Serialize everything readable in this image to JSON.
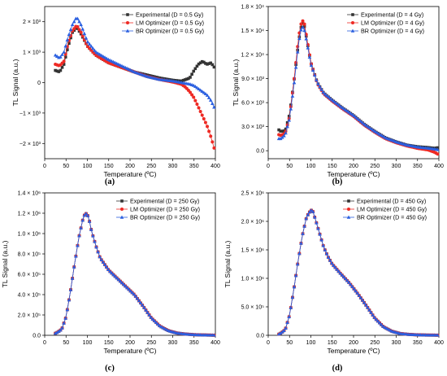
{
  "colors": {
    "experimental": "#333333",
    "lm": "#ee2a24",
    "br": "#2a5fe0"
  },
  "chart_data": [
    {
      "type": "scatter",
      "panel_label": "(a)",
      "xlabel": "Temperature (ºC)",
      "ylabel": "TL Signal (a.u.)",
      "xlim": [
        0,
        400
      ],
      "ylim": [
        -2500,
        2500
      ],
      "xticks": [
        0,
        50,
        100,
        150,
        200,
        250,
        300,
        350,
        400
      ],
      "xtick_labels": [
        "0",
        "50",
        "100",
        "150",
        "200",
        "250",
        "300",
        "350",
        "400"
      ],
      "yticks": [
        -2000,
        -1000,
        0,
        1000,
        2000
      ],
      "ytick_labels": [
        "−2 × 10³",
        "−1 × 10³",
        "0",
        "1 × 10³",
        "2 × 10³"
      ],
      "legend_position": "top-right",
      "series": [
        {
          "name": "Experimental (D = 0.5 Gy)",
          "marker": "square",
          "color": "#333333",
          "x": [
            25,
            35,
            45,
            55,
            65,
            75,
            85,
            100,
            120,
            150,
            180,
            210,
            240,
            270,
            300,
            320,
            340,
            350,
            360,
            370,
            380,
            390,
            400
          ],
          "y": [
            400,
            350,
            600,
            1200,
            1650,
            1820,
            1600,
            1200,
            900,
            650,
            500,
            350,
            250,
            150,
            80,
            50,
            150,
            400,
            600,
            700,
            600,
            650,
            450
          ]
        },
        {
          "name": "LM Optimizer (D = 0.5 Gy)",
          "marker": "circle",
          "color": "#ee2a24",
          "x": [
            25,
            35,
            45,
            55,
            65,
            75,
            85,
            100,
            120,
            150,
            180,
            210,
            240,
            270,
            300,
            320,
            330,
            340,
            350,
            360,
            370,
            380,
            390,
            400
          ],
          "y": [
            600,
            550,
            700,
            1300,
            1700,
            1880,
            1650,
            1200,
            900,
            650,
            500,
            350,
            200,
            100,
            20,
            -50,
            -150,
            -300,
            -500,
            -800,
            -1100,
            -1400,
            -1800,
            -2300
          ]
        },
        {
          "name": "BR Optimizer (D = 0.5 Gy)",
          "marker": "triangle",
          "color": "#2a5fe0",
          "x": [
            25,
            35,
            45,
            55,
            65,
            75,
            85,
            100,
            120,
            150,
            180,
            210,
            240,
            270,
            300,
            320,
            340,
            350,
            360,
            370,
            380,
            390,
            400
          ],
          "y": [
            900,
            800,
            1000,
            1500,
            1900,
            2150,
            1900,
            1350,
            1000,
            750,
            550,
            350,
            200,
            100,
            50,
            0,
            -50,
            -100,
            -200,
            -300,
            -400,
            -600,
            -900
          ]
        }
      ]
    },
    {
      "type": "scatter",
      "panel_label": "(b)",
      "xlabel": "Temperature (ºC)",
      "ylabel": "TL Signal (a.u.)",
      "xlim": [
        0,
        400
      ],
      "ylim": [
        -1000,
        18000
      ],
      "xticks": [
        0,
        50,
        100,
        150,
        200,
        250,
        300,
        350,
        400
      ],
      "xtick_labels": [
        "0",
        "50",
        "100",
        "150",
        "200",
        "250",
        "300",
        "350",
        "400"
      ],
      "yticks": [
        0,
        3000,
        6000,
        9000,
        12000,
        15000,
        18000
      ],
      "ytick_labels": [
        "0.0",
        "3.0 × 10³",
        "6.0 × 10³",
        "9.0 × 10³",
        "1.2 × 10⁴",
        "1.5 × 10⁴",
        "1.8 × 10⁴"
      ],
      "legend_position": "top-right",
      "series": [
        {
          "name": "Experimental (D = 4 Gy)",
          "marker": "square",
          "color": "#333333",
          "x": [
            25,
            30,
            40,
            50,
            60,
            70,
            75,
            80,
            85,
            90,
            100,
            115,
            130,
            150,
            175,
            200,
            225,
            250,
            275,
            300,
            325,
            350,
            375,
            390,
            400
          ],
          "y": [
            2600,
            2400,
            2500,
            4500,
            8500,
            13000,
            15000,
            16000,
            15500,
            14000,
            11000,
            8500,
            7200,
            6300,
            5300,
            4400,
            3300,
            2400,
            1600,
            1100,
            700,
            500,
            400,
            300,
            400
          ]
        },
        {
          "name": "LM Optimizer (D = 4 Gy)",
          "marker": "circle",
          "color": "#ee2a24",
          "x": [
            25,
            30,
            40,
            50,
            60,
            70,
            75,
            80,
            85,
            90,
            100,
            115,
            130,
            150,
            175,
            200,
            225,
            250,
            275,
            300,
            325,
            350,
            375,
            390,
            400
          ],
          "y": [
            2000,
            1900,
            2200,
            4200,
            8500,
            13500,
            15500,
            16300,
            15800,
            14200,
            11000,
            8400,
            7100,
            6200,
            5200,
            4300,
            3200,
            2300,
            1500,
            1000,
            600,
            300,
            100,
            -200,
            -500
          ]
        },
        {
          "name": "BR Optimizer (D = 4 Gy)",
          "marker": "triangle",
          "color": "#2a5fe0",
          "x": [
            25,
            30,
            40,
            50,
            60,
            70,
            75,
            80,
            85,
            90,
            100,
            115,
            130,
            150,
            175,
            200,
            225,
            250,
            275,
            300,
            325,
            350,
            375,
            390,
            400
          ],
          "y": [
            1500,
            1500,
            2000,
            4000,
            8000,
            12800,
            14800,
            15500,
            15000,
            13700,
            10800,
            8500,
            7200,
            6300,
            5300,
            4400,
            3300,
            2400,
            1600,
            1100,
            700,
            450,
            300,
            200,
            100
          ]
        }
      ]
    },
    {
      "type": "scatter",
      "panel_label": "(c)",
      "xlabel": "Temperature (ºC)",
      "ylabel": "TL Signal (a.u.)",
      "xlim": [
        0,
        400
      ],
      "ylim": [
        0,
        1400000
      ],
      "xticks": [
        0,
        50,
        100,
        150,
        200,
        250,
        300,
        350,
        400
      ],
      "xtick_labels": [
        "0",
        "50",
        "100",
        "150",
        "200",
        "250",
        "300",
        "350",
        "400"
      ],
      "yticks": [
        0,
        200000,
        400000,
        600000,
        800000,
        1000000,
        1200000,
        1400000
      ],
      "ytick_labels": [
        "0.0",
        "2.0 × 10⁵",
        "4.0 × 10⁵",
        "6.0 × 10⁵",
        "8.0 × 10⁵",
        "1.0 × 10⁶",
        "1.2 × 10⁶",
        "1.4 × 10⁶"
      ],
      "legend_position": "top-right",
      "series": [
        {
          "name": "Experimental (D = 250 Gy)",
          "marker": "square",
          "color": "#333333",
          "x": [
            25,
            30,
            40,
            50,
            60,
            70,
            80,
            90,
            95,
            100,
            105,
            110,
            120,
            130,
            140,
            150,
            170,
            190,
            210,
            230,
            250,
            270,
            290,
            310,
            330,
            350,
            370,
            400
          ],
          "y": [
            20000,
            30000,
            60000,
            180000,
            420000,
            700000,
            960000,
            1150000,
            1200000,
            1190000,
            1120000,
            1020000,
            880000,
            760000,
            700000,
            640000,
            560000,
            480000,
            400000,
            290000,
            170000,
            90000,
            45000,
            22000,
            12000,
            6000,
            3000,
            1000
          ]
        },
        {
          "name": "LM Optimizer (D = 250 Gy)",
          "marker": "circle",
          "color": "#ee2a24",
          "x": [
            25,
            30,
            40,
            50,
            60,
            70,
            80,
            90,
            95,
            100,
            105,
            110,
            120,
            130,
            140,
            150,
            170,
            190,
            210,
            230,
            250,
            270,
            290,
            310,
            330,
            350,
            370,
            400
          ],
          "y": [
            20000,
            30000,
            60000,
            180000,
            420000,
            700000,
            960000,
            1150000,
            1200000,
            1190000,
            1120000,
            1020000,
            880000,
            760000,
            700000,
            640000,
            560000,
            480000,
            400000,
            290000,
            170000,
            90000,
            45000,
            22000,
            12000,
            6000,
            3000,
            1000
          ]
        },
        {
          "name": "BR Optimizer (D = 250 Gy)",
          "marker": "triangle",
          "color": "#2a5fe0",
          "x": [
            25,
            30,
            40,
            50,
            60,
            70,
            80,
            90,
            95,
            100,
            105,
            110,
            120,
            130,
            140,
            150,
            170,
            190,
            210,
            230,
            250,
            270,
            290,
            310,
            330,
            350,
            370,
            400
          ],
          "y": [
            20000,
            30000,
            60000,
            180000,
            420000,
            700000,
            960000,
            1150000,
            1200000,
            1190000,
            1120000,
            1020000,
            880000,
            760000,
            700000,
            640000,
            560000,
            480000,
            400000,
            290000,
            170000,
            90000,
            45000,
            22000,
            12000,
            6000,
            3000,
            1000
          ]
        }
      ]
    },
    {
      "type": "scatter",
      "panel_label": "(d)",
      "xlabel": "Temperature (ºC)",
      "ylabel": "TL Signal (a.u.)",
      "xlim": [
        0,
        400
      ],
      "ylim": [
        0,
        2500000
      ],
      "xticks": [
        0,
        50,
        100,
        150,
        200,
        250,
        300,
        350,
        400
      ],
      "xtick_labels": [
        "0",
        "50",
        "100",
        "150",
        "200",
        "250",
        "300",
        "350",
        "400"
      ],
      "yticks": [
        0,
        500000,
        1000000,
        1500000,
        2000000,
        2500000
      ],
      "ytick_labels": [
        "0.0",
        "5.0 × 10⁵",
        "1.0 × 10⁶",
        "1.5 × 10⁶",
        "2.0 × 10⁶",
        "2.5 × 10⁶"
      ],
      "legend_position": "top-right",
      "series": [
        {
          "name": "Experimental (D = 450 Gy)",
          "marker": "square",
          "color": "#333333",
          "x": [
            25,
            30,
            40,
            50,
            60,
            70,
            80,
            90,
            100,
            105,
            110,
            120,
            130,
            140,
            150,
            170,
            190,
            210,
            230,
            250,
            270,
            290,
            310,
            330,
            350,
            370,
            400
          ],
          "y": [
            20000,
            40000,
            100000,
            350000,
            800000,
            1300000,
            1750000,
            2080000,
            2200000,
            2170000,
            2050000,
            1800000,
            1550000,
            1380000,
            1250000,
            1080000,
            920000,
            730000,
            520000,
            300000,
            150000,
            70000,
            30000,
            15000,
            8000,
            4000,
            2000
          ]
        },
        {
          "name": "LM Optimizer (D = 450 Gy)",
          "marker": "circle",
          "color": "#ee2a24",
          "x": [
            25,
            30,
            40,
            50,
            60,
            70,
            80,
            90,
            100,
            105,
            110,
            120,
            130,
            140,
            150,
            170,
            190,
            210,
            230,
            250,
            270,
            290,
            310,
            330,
            350,
            370,
            400
          ],
          "y": [
            20000,
            40000,
            100000,
            350000,
            800000,
            1300000,
            1750000,
            2080000,
            2200000,
            2170000,
            2050000,
            1800000,
            1550000,
            1380000,
            1250000,
            1080000,
            920000,
            730000,
            520000,
            300000,
            150000,
            70000,
            30000,
            15000,
            8000,
            4000,
            2000
          ]
        },
        {
          "name": "BR Optimizer (D = 450 Gy)",
          "marker": "triangle",
          "color": "#2a5fe0",
          "x": [
            25,
            30,
            40,
            50,
            60,
            70,
            80,
            90,
            100,
            105,
            110,
            120,
            130,
            140,
            150,
            170,
            190,
            210,
            230,
            250,
            270,
            290,
            310,
            330,
            350,
            370,
            400
          ],
          "y": [
            20000,
            40000,
            100000,
            350000,
            800000,
            1300000,
            1750000,
            2080000,
            2200000,
            2170000,
            2050000,
            1800000,
            1550000,
            1380000,
            1250000,
            1080000,
            920000,
            730000,
            520000,
            300000,
            150000,
            70000,
            30000,
            15000,
            8000,
            4000,
            2000
          ]
        }
      ]
    }
  ]
}
